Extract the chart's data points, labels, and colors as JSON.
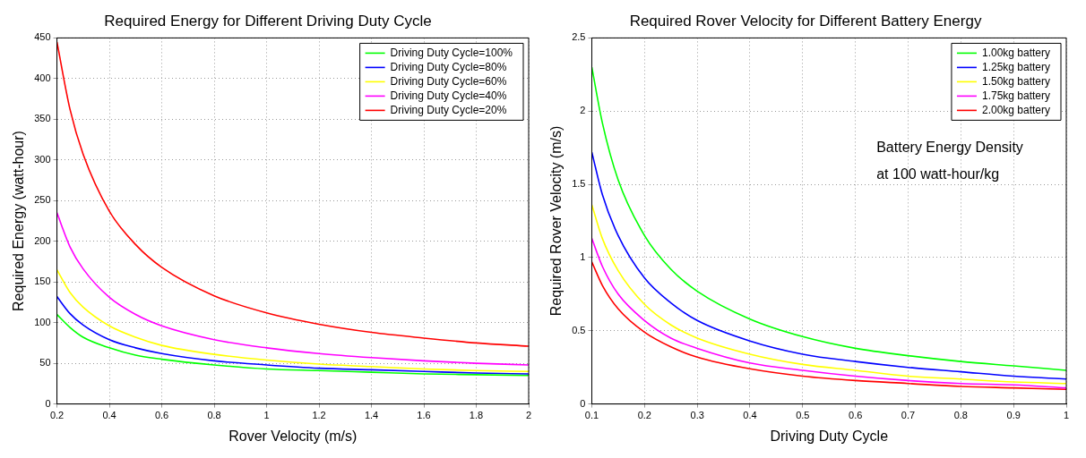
{
  "chart_data": [
    {
      "type": "line",
      "title": "Required Energy for Different Driving Duty Cycle",
      "xlabel": "Rover Velocity (m/s)",
      "ylabel": "Required Energy (watt-hour)",
      "x": [
        0.2,
        0.25,
        0.3,
        0.4,
        0.5,
        0.6,
        0.8,
        1.0,
        1.2,
        1.4,
        1.6,
        1.8,
        2.0
      ],
      "series": [
        {
          "name": "Driving Duty Cycle=100%",
          "color": "#00ff00",
          "values": [
            110,
            94,
            82,
            69,
            60,
            55,
            48,
            43,
            41,
            39,
            37,
            36,
            35
          ]
        },
        {
          "name": "Driving Duty Cycle=80%",
          "color": "#0000ff",
          "values": [
            132,
            111,
            97,
            79,
            69,
            62,
            53,
            48,
            44,
            42,
            40,
            38,
            37
          ]
        },
        {
          "name": "Driving Duty Cycle=60%",
          "color": "#ffff00",
          "values": [
            165,
            137,
            119,
            96,
            82,
            72,
            61,
            54,
            49,
            46,
            43,
            41,
            40
          ]
        },
        {
          "name": "Driving Duty Cycle=40%",
          "color": "#ff00ff",
          "values": [
            235,
            193,
            166,
            131,
            110,
            96,
            79,
            69,
            62,
            57,
            53,
            50,
            48
          ]
        },
        {
          "name": "Driving Duty Cycle=20%",
          "color": "#ff0000",
          "values": [
            445,
            362,
            307,
            237,
            196,
            168,
            133,
            112,
            98,
            88,
            81,
            75,
            71
          ]
        }
      ],
      "xlim": [
        0.2,
        2
      ],
      "xticks": [
        0.2,
        0.4,
        0.6,
        0.8,
        1,
        1.2,
        1.4,
        1.6,
        1.8,
        2
      ],
      "ylim": [
        0,
        450
      ],
      "yticks": [
        0,
        50,
        100,
        150,
        200,
        250,
        300,
        350,
        400,
        450
      ],
      "grid": true,
      "legend": "top right",
      "marker": "none",
      "line_style": "solid"
    },
    {
      "type": "line",
      "title": "Required Rover Velocity for Different Battery Energy",
      "xlabel": "Driving Duty Cycle",
      "ylabel": "Required Rover Velocity (m/s)",
      "annotations": [
        "Battery Energy Density",
        "at 100 watt-hour/kg"
      ],
      "x": [
        0.1,
        0.12,
        0.15,
        0.2,
        0.25,
        0.3,
        0.4,
        0.5,
        0.6,
        0.7,
        0.8,
        0.9,
        1.0
      ],
      "series": [
        {
          "name": "1.00kg battery",
          "color": "#00ff00",
          "values": [
            2.3,
            1.92,
            1.53,
            1.15,
            0.92,
            0.77,
            0.58,
            0.46,
            0.38,
            0.33,
            0.29,
            0.26,
            0.23
          ]
        },
        {
          "name": "1.25kg battery",
          "color": "#0000ff",
          "values": [
            1.72,
            1.43,
            1.15,
            0.86,
            0.69,
            0.57,
            0.43,
            0.34,
            0.29,
            0.25,
            0.22,
            0.19,
            0.17
          ]
        },
        {
          "name": "1.50kg battery",
          "color": "#ffff00",
          "values": [
            1.36,
            1.13,
            0.91,
            0.68,
            0.54,
            0.45,
            0.34,
            0.27,
            0.23,
            0.19,
            0.17,
            0.15,
            0.14
          ]
        },
        {
          "name": "1.75kg battery",
          "color": "#ff00ff",
          "values": [
            1.13,
            0.94,
            0.75,
            0.57,
            0.45,
            0.38,
            0.28,
            0.23,
            0.19,
            0.16,
            0.14,
            0.13,
            0.11
          ]
        },
        {
          "name": "2.00kg battery",
          "color": "#ff0000",
          "values": [
            0.97,
            0.81,
            0.65,
            0.49,
            0.39,
            0.32,
            0.24,
            0.19,
            0.16,
            0.14,
            0.12,
            0.11,
            0.1
          ]
        }
      ],
      "xlim": [
        0.1,
        1
      ],
      "xticks": [
        0.1,
        0.2,
        0.3,
        0.4,
        0.5,
        0.6,
        0.7,
        0.8,
        0.9,
        1
      ],
      "ylim": [
        0,
        2.5
      ],
      "yticks": [
        0,
        0.5,
        1,
        1.5,
        2,
        2.5
      ],
      "grid": true,
      "legend": "top right",
      "marker": "none",
      "line_style": "solid"
    }
  ]
}
